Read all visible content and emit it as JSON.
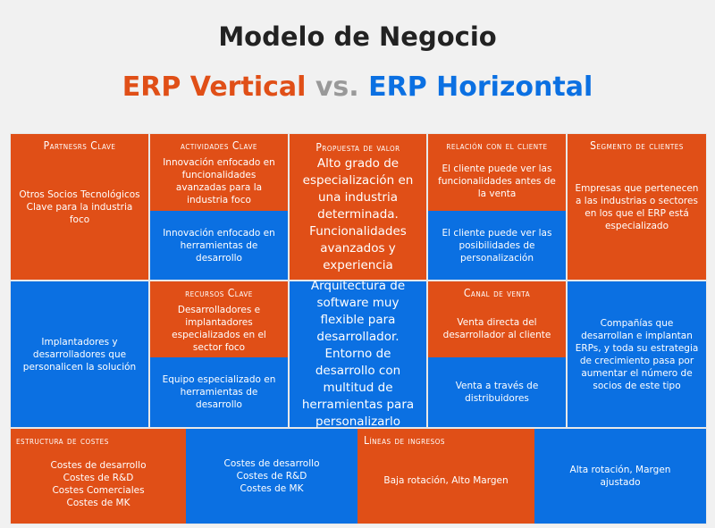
{
  "title": "Modelo de Negocio",
  "subtitle": {
    "left": "ERP Vertical",
    "mid": "vs.",
    "right": "ERP Horizontal"
  },
  "colors": {
    "vertical": "#e04f17",
    "horizontal": "#0b70e2",
    "vs": "#999999"
  },
  "partners": {
    "header": "Partnesrs Clave",
    "vertical": "Otros Socios Tecnológicos Clave para la industria foco",
    "horizontal": "Implantadores y desarrolladores que personalicen la solución"
  },
  "actividades": {
    "header": "actividades Clave",
    "vertical": "Innovación enfocado en funcionalidades avanzadas para la industria foco",
    "horizontal": "Innovación enfocado en herramientas de desarrollo"
  },
  "recursos": {
    "header": "recursos Clave",
    "vertical": "Desarrolladores e implantadores especializados en el sector foco",
    "horizontal": "Equipo especializado en herramientas de desarrollo"
  },
  "propuesta": {
    "header": "Propuesta de valor",
    "vertical": "Alto grado de especialización en una industria determinada. Funcionalidades avanzados y experiencia",
    "horizontal": "Arquitectura de software muy flexible para desarrollador. Entorno de desarrollo con multitud de herramientas para personalizarlo"
  },
  "relacion": {
    "header": "relación con el cliente",
    "vertical": "El cliente puede ver las funcionalidades antes de la venta",
    "horizontal": "El cliente puede ver las posibilidades de personalización"
  },
  "canal": {
    "header": "Canal de venta",
    "vertical": "Venta directa del desarrollador al cliente",
    "horizontal": "Venta a través de distribuidores"
  },
  "segmento": {
    "header": "Segmento de clientes",
    "vertical": "Empresas que pertenecen a las industrias o sectores en los que el ERP está especializado",
    "horizontal": "Compañías que desarrollan e implantan ERPs, y toda su estrategia de crecimiento pasa por aumentar el número de socios de este tipo"
  },
  "costes": {
    "header": "estructura de costes",
    "vertical": [
      "Costes de desarrollo",
      "Costes de R&D",
      "Costes Comerciales",
      "Costes de MK"
    ],
    "horizontal": [
      "Costes de desarrollo",
      "Costes de R&D",
      "Costes de MK"
    ]
  },
  "ingresos": {
    "header": "Líneas de ingresos",
    "vertical": "Baja rotación, Alto Margen",
    "horizontal": "Alta rotación, Margen ajustado"
  }
}
